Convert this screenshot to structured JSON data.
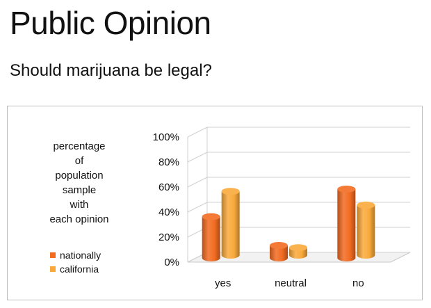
{
  "page": {
    "title": "Public Opinion",
    "subtitle": "Should marijuana be legal?"
  },
  "chart_data": {
    "type": "bar",
    "title": "",
    "ylabel_lines": [
      "percentage",
      "of",
      "population",
      "sample",
      "with",
      "each opinion"
    ],
    "categories": [
      "yes",
      "neutral",
      "no"
    ],
    "series": [
      {
        "name": "nationally",
        "values": [
          33,
          10,
          55
        ],
        "color": "#f26b21"
      },
      {
        "name": "california",
        "values": [
          51,
          6,
          40
        ],
        "color": "#f9a93b"
      }
    ],
    "ylim": [
      0,
      100
    ],
    "yticks": [
      "0%",
      "20%",
      "40%",
      "60%",
      "80%",
      "100%"
    ],
    "grid": true,
    "style": "3d-cylinder",
    "legend_position": "left"
  }
}
